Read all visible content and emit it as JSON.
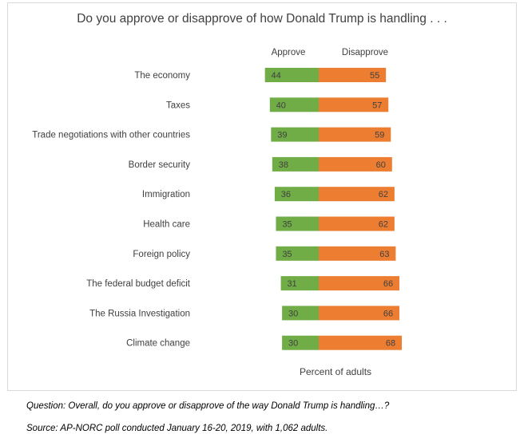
{
  "chart_data": {
    "type": "bar",
    "stacking": "diverging",
    "title": "Do you approve or disapprove of how Donald Trump is handling . . .",
    "categories": [
      "The economy",
      "Taxes",
      "Trade negotiations with other countries",
      "Border security",
      "Immigration",
      "Health care",
      "Foreign policy",
      "The federal budget deficit",
      "The Russia Investigation",
      "Climate change"
    ],
    "series": [
      {
        "name": "Approve",
        "color": "#70ad47",
        "values": [
          44,
          40,
          39,
          38,
          36,
          35,
          35,
          31,
          30,
          30
        ]
      },
      {
        "name": "Disapprove",
        "color": "#ed7d31",
        "values": [
          55,
          57,
          59,
          60,
          62,
          62,
          63,
          66,
          66,
          68
        ]
      }
    ],
    "xlabel": "Percent of adults",
    "legend": "top",
    "grid": false
  },
  "notes": {
    "question": "Question: Overall, do you approve or disapprove of the way Donald Trump is handling…?",
    "source": "Source: AP-NORC poll conducted January 16-20, 2019, with 1,062 adults."
  }
}
